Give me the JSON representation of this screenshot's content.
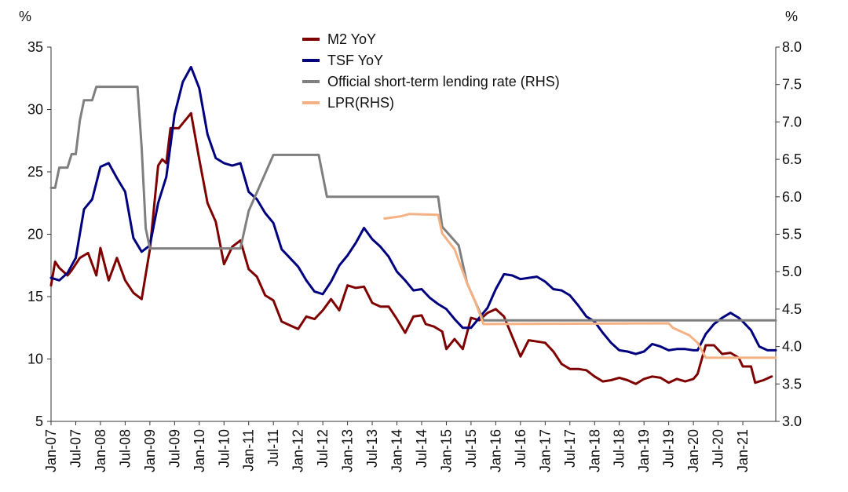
{
  "chart_data": {
    "type": "line",
    "left_unit": "%",
    "right_unit": "%",
    "y_left": {
      "min": 5,
      "max": 35,
      "ticks": [
        "5",
        "10",
        "15",
        "20",
        "25",
        "30",
        "35"
      ]
    },
    "y_right": {
      "min": 3.0,
      "max": 8.0,
      "ticks": [
        "3.0",
        "3.5",
        "4.0",
        "4.5",
        "5.0",
        "5.5",
        "6.0",
        "6.5",
        "7.0",
        "7.5",
        "8.0"
      ]
    },
    "x_ticks": [
      "Jan-07",
      "Jul-07",
      "Jan-08",
      "Jul-08",
      "Jan-09",
      "Jul-09",
      "Jan-10",
      "Jul-10",
      "Jan-11",
      "Jul-11",
      "Jan-12",
      "Jul-12",
      "Jan-13",
      "Jul-13",
      "Jan-14",
      "Jul-14",
      "Jan-15",
      "Jul-15",
      "Jan-16",
      "Jul-16",
      "Jan-17",
      "Jul-17",
      "Jan-18",
      "Jul-18",
      "Jan-19",
      "Jul-19",
      "Jan-20",
      "Jul-20",
      "Jan-21"
    ],
    "x_range": [
      "2007-01",
      "2021-09"
    ],
    "legend_position": "top-center",
    "grid": false,
    "series": [
      {
        "name": "M2 YoY",
        "axis": "left",
        "color": "#7f0000",
        "points": [
          [
            "2007-01",
            15.9
          ],
          [
            "2007-02",
            17.8
          ],
          [
            "2007-03",
            17.3
          ],
          [
            "2007-05",
            16.7
          ],
          [
            "2007-06",
            17.1
          ],
          [
            "2007-08",
            18.1
          ],
          [
            "2007-10",
            18.5
          ],
          [
            "2007-12",
            16.7
          ],
          [
            "2008-01",
            18.9
          ],
          [
            "2008-03",
            16.3
          ],
          [
            "2008-05",
            18.1
          ],
          [
            "2008-07",
            16.3
          ],
          [
            "2008-09",
            15.3
          ],
          [
            "2008-11",
            14.8
          ],
          [
            "2009-01",
            18.8
          ],
          [
            "2009-03",
            25.5
          ],
          [
            "2009-04",
            26.0
          ],
          [
            "2009-05",
            25.7
          ],
          [
            "2009-06",
            28.5
          ],
          [
            "2009-08",
            28.5
          ],
          [
            "2009-11",
            29.7
          ],
          [
            "2010-01",
            26.0
          ],
          [
            "2010-03",
            22.5
          ],
          [
            "2010-05",
            21.0
          ],
          [
            "2010-07",
            17.6
          ],
          [
            "2010-09",
            19.0
          ],
          [
            "2010-11",
            19.5
          ],
          [
            "2011-01",
            17.2
          ],
          [
            "2011-03",
            16.6
          ],
          [
            "2011-05",
            15.1
          ],
          [
            "2011-07",
            14.7
          ],
          [
            "2011-09",
            13.0
          ],
          [
            "2011-11",
            12.7
          ],
          [
            "2012-01",
            12.4
          ],
          [
            "2012-03",
            13.4
          ],
          [
            "2012-05",
            13.2
          ],
          [
            "2012-07",
            13.9
          ],
          [
            "2012-09",
            14.8
          ],
          [
            "2012-11",
            13.9
          ],
          [
            "2013-01",
            15.9
          ],
          [
            "2013-03",
            15.7
          ],
          [
            "2013-05",
            15.8
          ],
          [
            "2013-07",
            14.5
          ],
          [
            "2013-09",
            14.2
          ],
          [
            "2013-11",
            14.2
          ],
          [
            "2014-01",
            13.2
          ],
          [
            "2014-03",
            12.1
          ],
          [
            "2014-05",
            13.4
          ],
          [
            "2014-07",
            13.5
          ],
          [
            "2014-08",
            12.8
          ],
          [
            "2014-10",
            12.6
          ],
          [
            "2014-12",
            12.2
          ],
          [
            "2015-01",
            10.8
          ],
          [
            "2015-03",
            11.6
          ],
          [
            "2015-05",
            10.8
          ],
          [
            "2015-07",
            13.3
          ],
          [
            "2015-09",
            13.1
          ],
          [
            "2015-11",
            13.7
          ],
          [
            "2016-01",
            14.0
          ],
          [
            "2016-03",
            13.4
          ],
          [
            "2016-05",
            11.8
          ],
          [
            "2016-07",
            10.2
          ],
          [
            "2016-09",
            11.5
          ],
          [
            "2016-11",
            11.4
          ],
          [
            "2017-01",
            11.3
          ],
          [
            "2017-03",
            10.6
          ],
          [
            "2017-05",
            9.6
          ],
          [
            "2017-07",
            9.2
          ],
          [
            "2017-09",
            9.2
          ],
          [
            "2017-11",
            9.1
          ],
          [
            "2018-01",
            8.6
          ],
          [
            "2018-03",
            8.2
          ],
          [
            "2018-05",
            8.3
          ],
          [
            "2018-07",
            8.5
          ],
          [
            "2018-09",
            8.3
          ],
          [
            "2018-11",
            8.0
          ],
          [
            "2019-01",
            8.4
          ],
          [
            "2019-03",
            8.6
          ],
          [
            "2019-05",
            8.5
          ],
          [
            "2019-07",
            8.1
          ],
          [
            "2019-09",
            8.4
          ],
          [
            "2019-11",
            8.2
          ],
          [
            "2020-01",
            8.4
          ],
          [
            "2020-02",
            8.8
          ],
          [
            "2020-04",
            11.1
          ],
          [
            "2020-06",
            11.1
          ],
          [
            "2020-08",
            10.4
          ],
          [
            "2020-10",
            10.5
          ],
          [
            "2020-12",
            10.1
          ],
          [
            "2021-01",
            9.4
          ],
          [
            "2021-03",
            9.4
          ],
          [
            "2021-04",
            8.1
          ],
          [
            "2021-06",
            8.3
          ],
          [
            "2021-08",
            8.6
          ]
        ]
      },
      {
        "name": "TSF YoY",
        "axis": "left",
        "color": "#00007f",
        "points": [
          [
            "2007-01",
            16.5
          ],
          [
            "2007-03",
            16.3
          ],
          [
            "2007-05",
            16.9
          ],
          [
            "2007-07",
            18.1
          ],
          [
            "2007-09",
            22.0
          ],
          [
            "2007-11",
            22.8
          ],
          [
            "2008-01",
            25.4
          ],
          [
            "2008-03",
            25.7
          ],
          [
            "2008-05",
            24.5
          ],
          [
            "2008-07",
            23.4
          ],
          [
            "2008-09",
            19.7
          ],
          [
            "2008-11",
            18.6
          ],
          [
            "2009-01",
            19.1
          ],
          [
            "2009-03",
            22.5
          ],
          [
            "2009-05",
            24.6
          ],
          [
            "2009-07",
            29.6
          ],
          [
            "2009-09",
            32.2
          ],
          [
            "2009-11",
            33.4
          ],
          [
            "2010-01",
            31.7
          ],
          [
            "2010-03",
            28.0
          ],
          [
            "2010-05",
            26.1
          ],
          [
            "2010-07",
            25.7
          ],
          [
            "2010-09",
            25.5
          ],
          [
            "2010-11",
            25.7
          ],
          [
            "2011-01",
            23.4
          ],
          [
            "2011-03",
            22.8
          ],
          [
            "2011-05",
            21.7
          ],
          [
            "2011-07",
            20.9
          ],
          [
            "2011-09",
            18.8
          ],
          [
            "2011-11",
            18.1
          ],
          [
            "2012-01",
            17.4
          ],
          [
            "2012-03",
            16.3
          ],
          [
            "2012-05",
            15.4
          ],
          [
            "2012-07",
            15.2
          ],
          [
            "2012-09",
            16.2
          ],
          [
            "2012-11",
            17.5
          ],
          [
            "2013-01",
            18.3
          ],
          [
            "2013-03",
            19.3
          ],
          [
            "2013-05",
            20.5
          ],
          [
            "2013-07",
            19.6
          ],
          [
            "2013-09",
            19.0
          ],
          [
            "2013-11",
            18.2
          ],
          [
            "2014-01",
            17.0
          ],
          [
            "2014-03",
            16.3
          ],
          [
            "2014-05",
            15.5
          ],
          [
            "2014-07",
            15.6
          ],
          [
            "2014-09",
            14.9
          ],
          [
            "2014-11",
            14.4
          ],
          [
            "2015-01",
            14.0
          ],
          [
            "2015-03",
            13.2
          ],
          [
            "2015-05",
            12.5
          ],
          [
            "2015-07",
            12.5
          ],
          [
            "2015-09",
            13.3
          ],
          [
            "2015-11",
            14.1
          ],
          [
            "2016-01",
            15.6
          ],
          [
            "2016-03",
            16.8
          ],
          [
            "2016-05",
            16.7
          ],
          [
            "2016-07",
            16.4
          ],
          [
            "2016-09",
            16.5
          ],
          [
            "2016-11",
            16.6
          ],
          [
            "2017-01",
            16.2
          ],
          [
            "2017-03",
            15.6
          ],
          [
            "2017-05",
            15.5
          ],
          [
            "2017-07",
            15.1
          ],
          [
            "2017-09",
            14.3
          ],
          [
            "2017-11",
            13.4
          ],
          [
            "2018-01",
            13.0
          ],
          [
            "2018-03",
            12.1
          ],
          [
            "2018-05",
            11.3
          ],
          [
            "2018-07",
            10.7
          ],
          [
            "2018-09",
            10.6
          ],
          [
            "2018-11",
            10.4
          ],
          [
            "2019-01",
            10.6
          ],
          [
            "2019-03",
            11.2
          ],
          [
            "2019-05",
            11.0
          ],
          [
            "2019-07",
            10.7
          ],
          [
            "2019-09",
            10.8
          ],
          [
            "2019-11",
            10.8
          ],
          [
            "2020-01",
            10.7
          ],
          [
            "2020-02",
            10.7
          ],
          [
            "2020-04",
            12.0
          ],
          [
            "2020-06",
            12.8
          ],
          [
            "2020-08",
            13.3
          ],
          [
            "2020-10",
            13.7
          ],
          [
            "2020-12",
            13.3
          ],
          [
            "2021-01",
            13.0
          ],
          [
            "2021-03",
            12.3
          ],
          [
            "2021-05",
            11.0
          ],
          [
            "2021-07",
            10.7
          ],
          [
            "2021-09",
            10.7
          ]
        ]
      },
      {
        "name": "Official short-term lending rate (RHS)",
        "axis": "right",
        "color": "#7f7f7f",
        "points": [
          [
            "2007-01",
            6.12
          ],
          [
            "2007-02",
            6.12
          ],
          [
            "2007-03",
            6.39
          ],
          [
            "2007-05",
            6.39
          ],
          [
            "2007-06",
            6.57
          ],
          [
            "2007-07",
            6.57
          ],
          [
            "2007-08",
            7.02
          ],
          [
            "2007-09",
            7.29
          ],
          [
            "2007-11",
            7.29
          ],
          [
            "2007-12",
            7.47
          ],
          [
            "2008-10",
            7.47
          ],
          [
            "2008-11",
            6.66
          ],
          [
            "2008-12",
            5.58
          ],
          [
            "2009-01",
            5.31
          ],
          [
            "2010-11",
            5.31
          ],
          [
            "2011-01",
            5.81
          ],
          [
            "2011-03",
            6.06
          ],
          [
            "2011-05",
            6.31
          ],
          [
            "2011-07",
            6.56
          ],
          [
            "2012-06",
            6.56
          ],
          [
            "2012-08",
            6.0
          ],
          [
            "2014-11",
            6.0
          ],
          [
            "2014-12",
            5.6
          ],
          [
            "2015-04",
            5.35
          ],
          [
            "2015-06",
            4.85
          ],
          [
            "2015-08",
            4.6
          ],
          [
            "2015-10",
            4.35
          ],
          [
            "2021-09",
            4.35
          ]
        ]
      },
      {
        "name": "LPR(RHS)",
        "axis": "right",
        "color": "#f4b183",
        "points": [
          [
            "2013-10",
            5.71
          ],
          [
            "2014-02",
            5.74
          ],
          [
            "2014-04",
            5.77
          ],
          [
            "2014-11",
            5.76
          ],
          [
            "2014-12",
            5.51
          ],
          [
            "2015-03",
            5.3
          ],
          [
            "2015-06",
            4.85
          ],
          [
            "2015-08",
            4.6
          ],
          [
            "2015-10",
            4.3
          ],
          [
            "2019-07",
            4.31
          ],
          [
            "2019-08",
            4.25
          ],
          [
            "2019-10",
            4.2
          ],
          [
            "2019-12",
            4.15
          ],
          [
            "2020-02",
            4.05
          ],
          [
            "2020-04",
            3.85
          ],
          [
            "2021-09",
            3.85
          ]
        ]
      }
    ]
  }
}
